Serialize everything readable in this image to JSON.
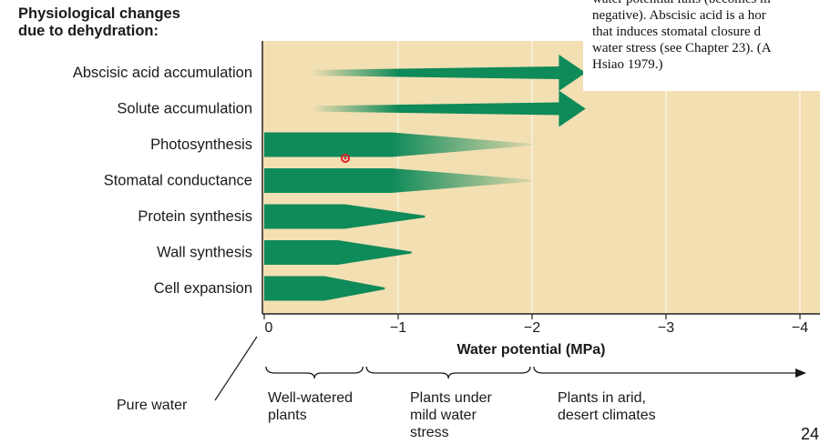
{
  "heading": {
    "line1": "Physiological changes",
    "line2": "due to dehydration:"
  },
  "caption": {
    "lines": [
      "water potential falls (becomes m",
      "negative). Abscisic acid is a hor",
      "that induces stomatal closure d",
      "water stress (see Chapter 23). (A",
      "Hsiao 1979.)"
    ]
  },
  "colors": {
    "panel": "#f2dfb2",
    "arrow": "#0f8a59",
    "gridline": "#fbf3e0",
    "axis": "#222222"
  },
  "chart_data": {
    "type": "bar",
    "title": "Physiological changes due to dehydration:",
    "xlabel": "Water potential (MPa)",
    "xlim": [
      0,
      -4
    ],
    "xticks": [
      0,
      -1,
      -2,
      -3,
      -4
    ],
    "xtick_labels": [
      "0",
      "−1",
      "−2",
      "−3",
      "−4"
    ],
    "grid": true,
    "categories": [
      "Abscisic acid accumulation",
      "Solute accumulation",
      "Photosynthesis",
      "Stomatal conductance",
      "Protein synthesis",
      "Wall synthesis",
      "Cell expansion"
    ],
    "series": [
      {
        "name": "Abscisic acid accumulation",
        "direction": "increase",
        "solid_from": -1.0,
        "solid_to": -2.2,
        "tip": -2.4,
        "fade_start": -0.35,
        "fade_end": -1.0
      },
      {
        "name": "Solute accumulation",
        "direction": "increase",
        "solid_from": -1.0,
        "solid_to": -2.2,
        "tip": -2.4,
        "fade_start": -0.35,
        "fade_end": -1.0
      },
      {
        "name": "Photosynthesis",
        "direction": "decrease",
        "solid_from": 0,
        "solid_to": -0.95,
        "tip": -2.0,
        "fade_start": -0.95,
        "fade_end": -2.0
      },
      {
        "name": "Stomatal conductance",
        "direction": "decrease",
        "solid_from": 0,
        "solid_to": -0.95,
        "tip": -2.0,
        "fade_start": -0.95,
        "fade_end": -2.0
      },
      {
        "name": "Protein synthesis",
        "direction": "decrease",
        "solid_from": 0,
        "solid_to": -0.6,
        "tip": -1.2
      },
      {
        "name": "Wall synthesis",
        "direction": "decrease",
        "solid_from": 0,
        "solid_to": -0.55,
        "tip": -1.1
      },
      {
        "name": "Cell expansion",
        "direction": "decrease",
        "solid_from": 0,
        "solid_to": -0.45,
        "tip": -0.9
      }
    ],
    "annotations": {
      "pure_water": "Pure water",
      "ranges": [
        {
          "label_lines": [
            "Well-watered",
            "plants"
          ],
          "from": 0,
          "to": -0.75
        },
        {
          "label_lines": [
            "Plants under",
            "mild water",
            "stress"
          ],
          "from": -0.75,
          "to": -2.0
        },
        {
          "label_lines": [
            "Plants in arid,",
            "desert climates"
          ],
          "from": -2.0,
          "to": -4.0
        }
      ]
    }
  },
  "page_number": "24"
}
